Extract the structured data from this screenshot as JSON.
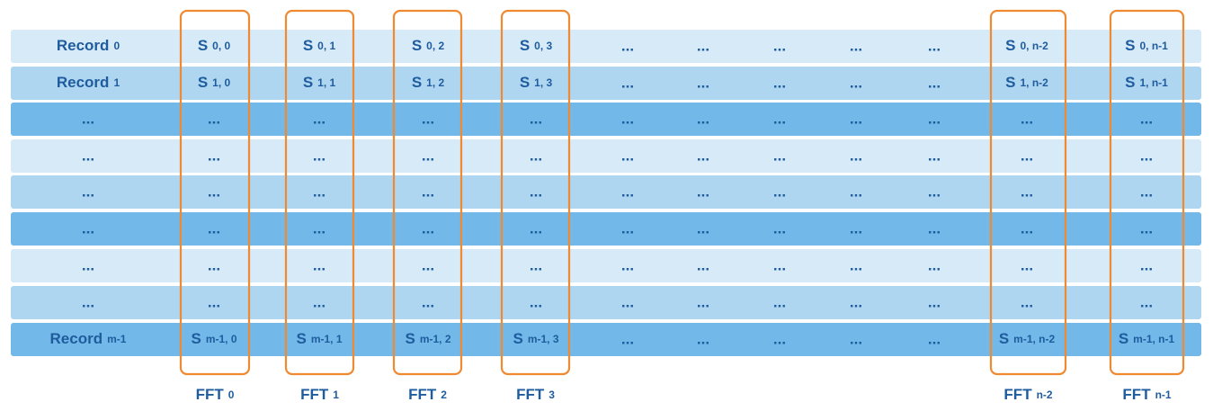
{
  "table": {
    "rows": [
      [
        {
          "text": "Record",
          "sub": "0"
        },
        {
          "text": "S",
          "sub": "0, 0"
        },
        {
          "text": "S",
          "sub": "0, 1"
        },
        {
          "text": "S",
          "sub": "0, 2"
        },
        {
          "text": "S",
          "sub": "0, 3"
        },
        "...",
        "...",
        "...",
        "...",
        "...",
        {
          "text": "S",
          "sub": "0, n-2"
        },
        {
          "text": "S",
          "sub": "0, n-1"
        }
      ],
      [
        {
          "text": "Record",
          "sub": "1"
        },
        {
          "text": "S",
          "sub": "1, 0"
        },
        {
          "text": "S",
          "sub": "1, 1"
        },
        {
          "text": "S",
          "sub": "1, 2"
        },
        {
          "text": "S",
          "sub": "1, 3"
        },
        "...",
        "...",
        "...",
        "...",
        "...",
        {
          "text": "S",
          "sub": "1, n-2"
        },
        {
          "text": "S",
          "sub": "1, n-1"
        }
      ],
      [
        "...",
        "...",
        "...",
        "...",
        "...",
        "...",
        "...",
        "...",
        "...",
        "...",
        "...",
        "..."
      ],
      [
        "...",
        "...",
        "...",
        "...",
        "...",
        "...",
        "...",
        "...",
        "...",
        "...",
        "...",
        "..."
      ],
      [
        "...",
        "...",
        "...",
        "...",
        "...",
        "...",
        "...",
        "...",
        "...",
        "...",
        "...",
        "..."
      ],
      [
        "...",
        "...",
        "...",
        "...",
        "...",
        "...",
        "...",
        "...",
        "...",
        "...",
        "...",
        "..."
      ],
      [
        "...",
        "...",
        "...",
        "...",
        "...",
        "...",
        "...",
        "...",
        "...",
        "...",
        "...",
        "..."
      ],
      [
        "...",
        "...",
        "...",
        "...",
        "...",
        "...",
        "...",
        "...",
        "...",
        "...",
        "...",
        "..."
      ],
      [
        {
          "text": "Record",
          "sub": "m-1"
        },
        {
          "text": "S",
          "sub": "m-1, 0"
        },
        {
          "text": "S",
          "sub": "m-1, 1"
        },
        {
          "text": "S",
          "sub": "m-1, 2"
        },
        {
          "text": "S",
          "sub": "m-1, 3"
        },
        "...",
        "...",
        "...",
        "...",
        "...",
        {
          "text": "S",
          "sub": "m-1, n-2"
        },
        {
          "text": "S",
          "sub": "m-1, n-1"
        }
      ]
    ],
    "fft_labels": [
      {
        "text": "FFT",
        "sub": "0"
      },
      {
        "text": "FFT",
        "sub": "1"
      },
      {
        "text": "FFT",
        "sub": "2"
      },
      {
        "text": "FFT",
        "sub": "3"
      },
      {
        "text": "FFT",
        "sub": "n-2"
      },
      {
        "text": "FFT",
        "sub": "n-1"
      }
    ]
  }
}
